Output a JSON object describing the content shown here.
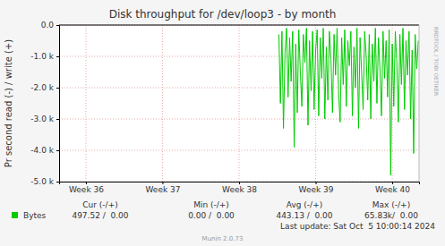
{
  "chart_data": {
    "type": "line",
    "title": "Disk throughput for /dev/loop3 - by month",
    "y_label": "Pr second read (-) / write (+)",
    "x": [
      39.02,
      39.04,
      39.06,
      39.08,
      39.1,
      39.12,
      39.14,
      39.16,
      39.18,
      39.2,
      39.22,
      39.24,
      39.26,
      39.28,
      39.3,
      39.32,
      39.34,
      39.36,
      39.38,
      39.4,
      39.42,
      39.44,
      39.46,
      39.48,
      39.5,
      39.52,
      39.54,
      39.56,
      39.58,
      39.6,
      39.62,
      39.64,
      39.66,
      39.68,
      39.7,
      39.72,
      39.74,
      39.76,
      39.78,
      39.8,
      39.82,
      39.84,
      39.86,
      39.88,
      39.9,
      39.92,
      39.94,
      39.96,
      39.98,
      40.0,
      40.02,
      40.04,
      40.06,
      40.08,
      40.1,
      40.12,
      40.14,
      40.16,
      40.18,
      40.2,
      40.22,
      40.24,
      40.26,
      40.28,
      40.3,
      40.32,
      40.34,
      40.36,
      40.38,
      40.4,
      40.42,
      40.44,
      40.46,
      40.48,
      40.5,
      40.52,
      40.54,
      40.56,
      40.58,
      40.6,
      40.62,
      40.64,
      40.66,
      40.68,
      40.7,
      40.72,
      40.74,
      40.76,
      40.78,
      40.8,
      40.82,
      40.84
    ],
    "series": [
      {
        "name": "Bytes",
        "color": "#00cc00",
        "values": [
          -300,
          -2500,
          -200,
          -3300,
          -900,
          -100,
          -2300,
          -400,
          -1800,
          -200,
          -3900,
          -600,
          -2800,
          -150,
          -1500,
          -2600,
          -300,
          -1200,
          -100,
          -3200,
          -500,
          -2100,
          -200,
          -2700,
          -800,
          -150,
          -2900,
          -400,
          -1700,
          -100,
          -3000,
          -700,
          -2400,
          -200,
          -1100,
          -2800,
          -300,
          -1600,
          -100,
          -2200,
          -3100,
          -400,
          -1900,
          -150,
          -2600,
          -500,
          -1300,
          -200,
          -2900,
          -700,
          -2000,
          -100,
          -3300,
          -400,
          -1500,
          -2700,
          -200,
          -1000,
          -2400,
          -300,
          -3000,
          -600,
          -1800,
          -100,
          -2500,
          -400,
          -1400,
          -2900,
          -200,
          -1700,
          -500,
          -2300,
          -150,
          -4800,
          -600,
          -2600,
          -200,
          -1200,
          -3100,
          -300,
          -1900,
          -100,
          -2700,
          -500,
          -1600,
          -200,
          -3000,
          -800,
          -4100,
          -300,
          -1400,
          -500
        ]
      }
    ],
    "xlim": [
      36.15,
      40.85
    ],
    "xticks": [
      {
        "value": 36.5,
        "label": "Week 36"
      },
      {
        "value": 37.5,
        "label": "Week 37"
      },
      {
        "value": 38.5,
        "label": "Week 38"
      },
      {
        "value": 39.5,
        "label": "Week 39"
      },
      {
        "value": 40.5,
        "label": "Week 40"
      }
    ],
    "ylim": [
      -5000,
      0
    ],
    "yticks": [
      {
        "value": 0,
        "label": "0.0"
      },
      {
        "value": -1000,
        "label": "-1.0 k"
      },
      {
        "value": -2000,
        "label": "-2.0 k"
      },
      {
        "value": -3000,
        "label": "-3.0 k"
      },
      {
        "value": -4000,
        "label": "-4.0 k"
      },
      {
        "value": -5000,
        "label": "-5.0 k"
      }
    ],
    "grid": true,
    "legend": "bottom",
    "summary": {
      "columns": [
        "Cur (-/+)",
        "Min (-/+)",
        "Avg (-/+)",
        "Max (-/+)"
      ],
      "values": [
        "497.52 /  0.00",
        "0.00 /  0.00",
        "443.13 /  0.00",
        "65.83k/  0.00"
      ]
    },
    "last_update": "Last update: Sat Oct  5 10:00:14 2024",
    "footer": "Munin 2.0.73",
    "watermark": "RRDTOOL / TOBI OETIKER"
  }
}
